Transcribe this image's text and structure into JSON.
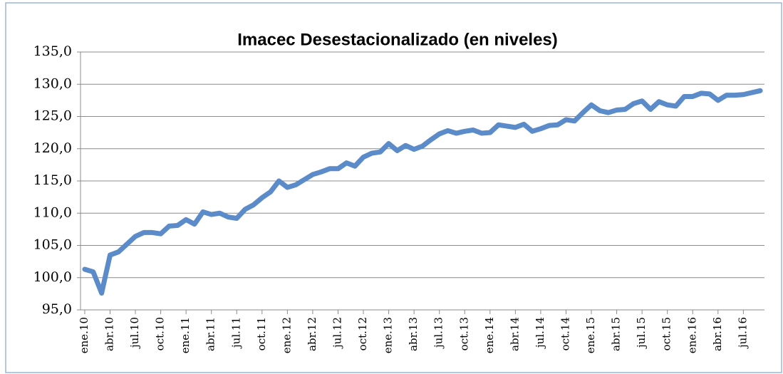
{
  "chart_data": {
    "type": "line",
    "title": "Imacec Desestacionalizado (en  niveles)",
    "categories": [
      "ene.10",
      null,
      null,
      "abr.10",
      null,
      null,
      "jul.10",
      null,
      null,
      "oct.10",
      null,
      null,
      "ene.11",
      null,
      null,
      "abr.11",
      null,
      null,
      "jul.11",
      null,
      null,
      "oct.11",
      null,
      null,
      "ene.12",
      null,
      null,
      "abr.12",
      null,
      null,
      "jul.12",
      null,
      null,
      "oct.12",
      null,
      null,
      "ene.13",
      null,
      null,
      "abr.13",
      null,
      null,
      "jul.13",
      null,
      null,
      "oct.13",
      null,
      null,
      "ene.14",
      null,
      null,
      "abr.14",
      null,
      null,
      "jul.14",
      null,
      null,
      "oct.14",
      null,
      null,
      "ene.15",
      null,
      null,
      "abr.15",
      null,
      null,
      "jul.15",
      null,
      null,
      "oct.15",
      null,
      null,
      "ene.16",
      null,
      null,
      "abr.16",
      null,
      null,
      "jul.16",
      null,
      null
    ],
    "series": [
      {
        "name": "Imacec",
        "color": "#5b8cc9",
        "values": [
          101.3,
          100.9,
          97.6,
          103.5,
          104.0,
          105.2,
          106.4,
          107.0,
          107.0,
          106.8,
          108.0,
          108.1,
          109.0,
          108.3,
          110.2,
          109.8,
          110.0,
          109.4,
          109.2,
          110.6,
          111.3,
          112.4,
          113.3,
          115.0,
          114.0,
          114.4,
          115.2,
          116.0,
          116.4,
          116.9,
          116.9,
          117.8,
          117.3,
          118.7,
          119.3,
          119.5,
          120.8,
          119.7,
          120.5,
          119.9,
          120.4,
          121.4,
          122.3,
          122.8,
          122.4,
          122.7,
          122.9,
          122.4,
          122.5,
          123.7,
          123.5,
          123.3,
          123.8,
          122.7,
          123.1,
          123.6,
          123.7,
          124.5,
          124.3,
          125.6,
          126.8,
          125.9,
          125.6,
          126.0,
          126.1,
          127.0,
          127.4,
          126.1,
          127.3,
          126.8,
          126.6,
          128.1,
          128.1,
          128.6,
          128.5,
          127.5,
          128.3,
          128.3,
          128.4,
          128.7,
          129.0
        ]
      }
    ],
    "ylim": [
      95,
      135
    ],
    "yticks": [
      {
        "value": 95,
        "label": "95,0"
      },
      {
        "value": 100,
        "label": "100,0"
      },
      {
        "value": 105,
        "label": "105,0"
      },
      {
        "value": 110,
        "label": "110,0"
      },
      {
        "value": 115,
        "label": "115,0"
      },
      {
        "value": 120,
        "label": "120,0"
      },
      {
        "value": 125,
        "label": "125,0"
      },
      {
        "value": 130,
        "label": "130,0"
      },
      {
        "value": 135,
        "label": "135,0"
      }
    ],
    "grid": true
  }
}
